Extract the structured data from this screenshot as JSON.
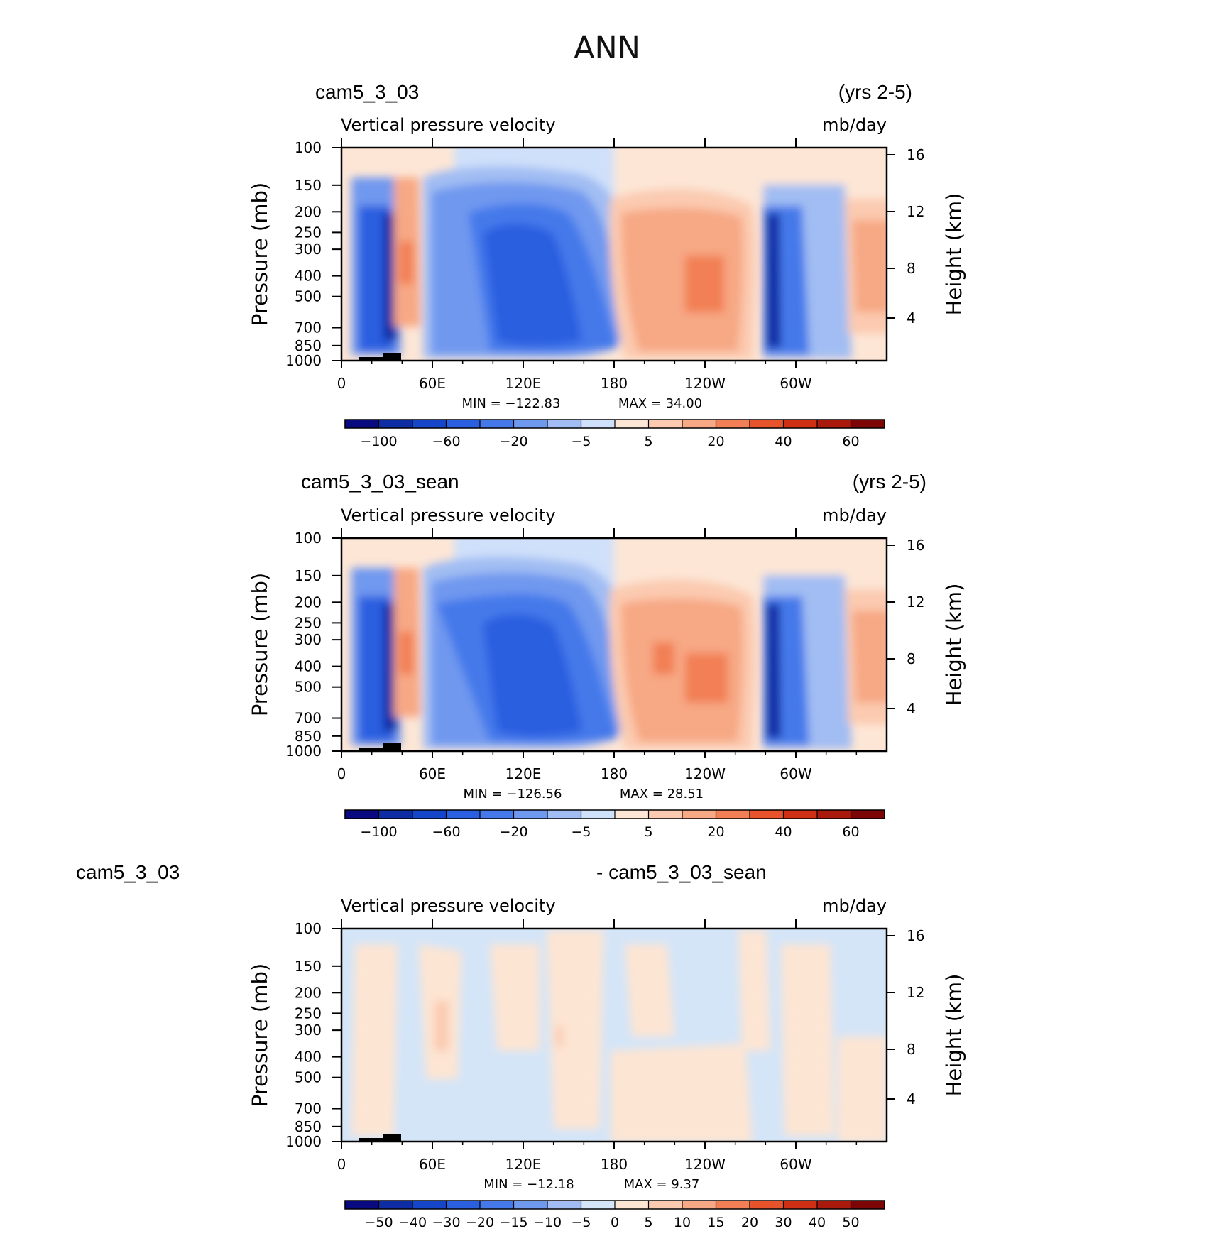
{
  "figure": {
    "title": "ANN"
  },
  "colors": {
    "abs_palette": [
      "#0a0a80",
      "#0e2ca3",
      "#1546c9",
      "#2a5fe0",
      "#4579ea",
      "#6f98ef",
      "#a1bdf3",
      "#cfe0fa",
      "#fde6d6",
      "#fbcab0",
      "#f7a884",
      "#f27f55",
      "#e8532b",
      "#cf3015",
      "#a91a0c",
      "#7c0505"
    ],
    "diff_palette": [
      "#0a0a80",
      "#0e2ca3",
      "#1546c9",
      "#2a5fe0",
      "#4579ea",
      "#6f98ef",
      "#a1bdf3",
      "#d4e5f8",
      "#fde5d3",
      "#fbcab0",
      "#f7a884",
      "#f27f55",
      "#e8532b",
      "#cf3015",
      "#a91a0c",
      "#7c0505"
    ],
    "topography": "#000000"
  },
  "chart_data": [
    {
      "type": "heatmap",
      "case_label": "cam5_3_03",
      "years_label": "(yrs 2-5)",
      "variable": "Vertical pressure velocity",
      "units": "mb/day",
      "ylabel": "Pressure (mb)",
      "ylabel_right": "Height (km)",
      "x_ticks": [
        "0",
        "60E",
        "120E",
        "180",
        "120W",
        "60W"
      ],
      "x_tick_lons": [
        0,
        60,
        120,
        180,
        240,
        300
      ],
      "xlim": [
        0,
        360
      ],
      "y_ticks": [
        "100",
        "150",
        "200",
        "250",
        "300",
        "400",
        "500",
        "700",
        "850",
        "1000"
      ],
      "y_tick_values": [
        100,
        150,
        200,
        250,
        300,
        400,
        500,
        700,
        850,
        1000
      ],
      "ylim": [
        1000,
        100
      ],
      "y_scale": "log",
      "right_ticks": [
        "16",
        "12",
        "8",
        "4"
      ],
      "min_label": "MIN = −122.83",
      "max_label": "MAX = 34.00",
      "min": -122.83,
      "max": 34.0,
      "colorbar_levels": [
        "−100",
        "−60",
        "−20",
        "−5",
        "5",
        "20",
        "40",
        "60"
      ]
    },
    {
      "type": "heatmap",
      "case_label": "cam5_3_03_sean",
      "years_label": "(yrs 2-5)",
      "variable": "Vertical pressure velocity",
      "units": "mb/day",
      "ylabel": "Pressure (mb)",
      "ylabel_right": "Height (km)",
      "x_ticks": [
        "0",
        "60E",
        "120E",
        "180",
        "120W",
        "60W"
      ],
      "x_tick_lons": [
        0,
        60,
        120,
        180,
        240,
        300
      ],
      "xlim": [
        0,
        360
      ],
      "y_ticks": [
        "100",
        "150",
        "200",
        "250",
        "300",
        "400",
        "500",
        "700",
        "850",
        "1000"
      ],
      "y_tick_values": [
        100,
        150,
        200,
        250,
        300,
        400,
        500,
        700,
        850,
        1000
      ],
      "ylim": [
        1000,
        100
      ],
      "y_scale": "log",
      "right_ticks": [
        "16",
        "12",
        "8",
        "4"
      ],
      "min_label": "MIN = −126.56",
      "max_label": "MAX = 28.51",
      "min": -126.56,
      "max": 28.51,
      "colorbar_levels": [
        "−100",
        "−60",
        "−20",
        "−5",
        "5",
        "20",
        "40",
        "60"
      ]
    },
    {
      "type": "heatmap",
      "case_label": "cam5_3_03",
      "case_label_2": "- cam5_3_03_sean",
      "variable": "Vertical pressure velocity",
      "units": "mb/day",
      "ylabel": "Pressure (mb)",
      "ylabel_right": "Height (km)",
      "x_ticks": [
        "0",
        "60E",
        "120E",
        "180",
        "120W",
        "60W"
      ],
      "x_tick_lons": [
        0,
        60,
        120,
        180,
        240,
        300
      ],
      "xlim": [
        0,
        360
      ],
      "y_ticks": [
        "100",
        "150",
        "200",
        "250",
        "300",
        "400",
        "500",
        "700",
        "850",
        "1000"
      ],
      "y_tick_values": [
        100,
        150,
        200,
        250,
        300,
        400,
        500,
        700,
        850,
        1000
      ],
      "ylim": [
        1000,
        100
      ],
      "y_scale": "log",
      "right_ticks": [
        "16",
        "12",
        "8",
        "4"
      ],
      "min_label": "MIN = −12.18",
      "max_label": "MAX = 9.37",
      "min": -12.18,
      "max": 9.37,
      "colorbar_levels": [
        "−50",
        "−40",
        "−30",
        "−20",
        "−15",
        "−10",
        "−5",
        "0",
        "5",
        "10",
        "15",
        "20",
        "30",
        "40",
        "50"
      ]
    }
  ]
}
